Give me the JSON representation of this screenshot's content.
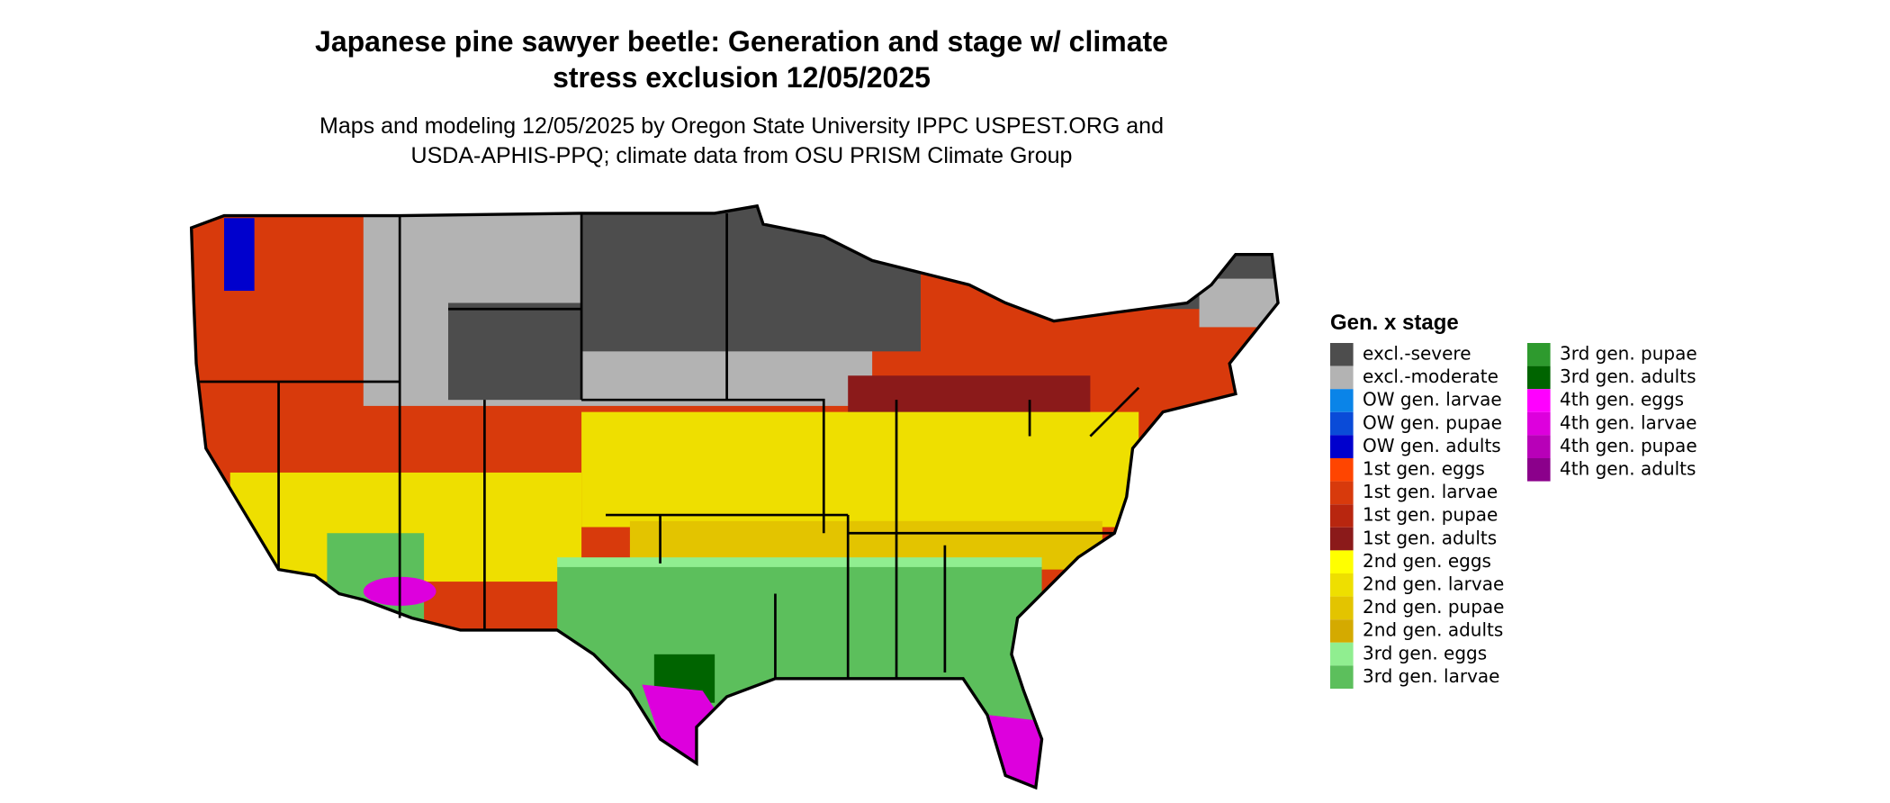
{
  "header": {
    "title": [
      "Japanese pine sawyer beetle: Generation and stage w/ climate",
      "stress exclusion 12/05/2025"
    ],
    "subtitle": [
      "Maps and modeling 12/05/2025 by Oregon State University IPPC USPEST.ORG and",
      "USDA-APHIS-PPQ; climate data from OSU PRISM Climate Group"
    ]
  },
  "legend": {
    "title": "Gen. x stage",
    "items": [
      {
        "label": "excl.-severe",
        "color": "#4d4d4d"
      },
      {
        "label": "excl.-moderate",
        "color": "#b3b3b3"
      },
      {
        "label": "OW gen. larvae",
        "color": "#0a84e8"
      },
      {
        "label": "OW gen. pupae",
        "color": "#0a4bd8"
      },
      {
        "label": "OW gen. adults",
        "color": "#0000cd"
      },
      {
        "label": "1st gen. eggs",
        "color": "#ff4500"
      },
      {
        "label": "1st gen. larvae",
        "color": "#d83a0c"
      },
      {
        "label": "1st gen. pupae",
        "color": "#b8260f"
      },
      {
        "label": "1st gen. adults",
        "color": "#8b1a1a"
      },
      {
        "label": "2nd gen. eggs",
        "color": "#ffff00"
      },
      {
        "label": "2nd gen. larvae",
        "color": "#eedf00"
      },
      {
        "label": "2nd gen. pupae",
        "color": "#e3c400"
      },
      {
        "label": "2nd gen. adults",
        "color": "#d4aa00"
      },
      {
        "label": "3rd gen. eggs",
        "color": "#90ee90"
      },
      {
        "label": "3rd gen. larvae",
        "color": "#5cbf5c"
      },
      {
        "label": "3rd gen. pupae",
        "color": "#2e9a2e"
      },
      {
        "label": "3rd gen. adults",
        "color": "#006400"
      },
      {
        "label": "4th gen. eggs",
        "color": "#ff00ff"
      },
      {
        "label": "4th gen. larvae",
        "color": "#dd00dd"
      },
      {
        "label": "4th gen. pupae",
        "color": "#b800b8"
      },
      {
        "label": "4th gen. adults",
        "color": "#8b008b"
      }
    ]
  }
}
